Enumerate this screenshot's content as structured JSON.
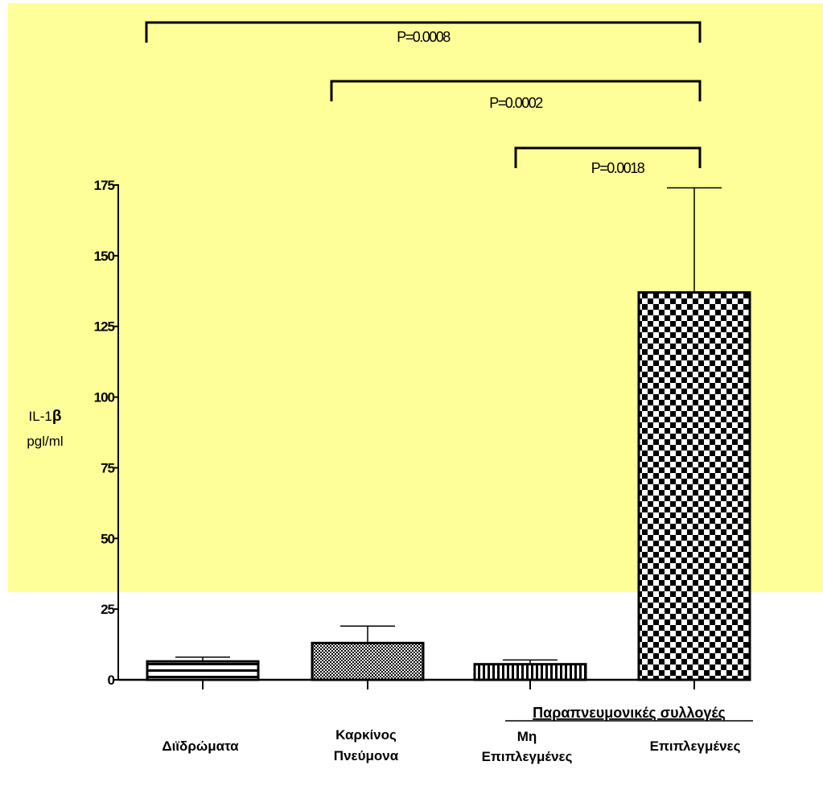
{
  "chart_data": {
    "type": "bar",
    "categories": [
      [
        "Διϊδρώματα"
      ],
      [
        "Καρκίνος",
        "Πνεύμονα"
      ],
      [
        "Μη",
        "Επιπλεγμένες"
      ],
      [
        "Επιπλεγμένες"
      ]
    ],
    "values": [
      6.5,
      13,
      5.5,
      137
    ],
    "errors": [
      8,
      19,
      7,
      174
    ],
    "patterns": [
      "hstripes",
      "finecheck",
      "vstripes",
      "checker"
    ],
    "ylabel": [
      "IL-1β",
      "pgl/ml"
    ],
    "ylim": [
      0,
      175
    ],
    "yticks": [
      "0",
      "25",
      "50",
      "75",
      "100",
      "125",
      "150",
      "175"
    ],
    "group_label": "Παραπνευμονικές συλλογές",
    "brackets": [
      {
        "from": 0,
        "to": 3,
        "label": "P=0.0008"
      },
      {
        "from": 1,
        "to": 3,
        "label": "P=0.0002"
      },
      {
        "from": 2,
        "to": 3,
        "label": "P=0.0018"
      }
    ],
    "background": "#FFFF99"
  }
}
